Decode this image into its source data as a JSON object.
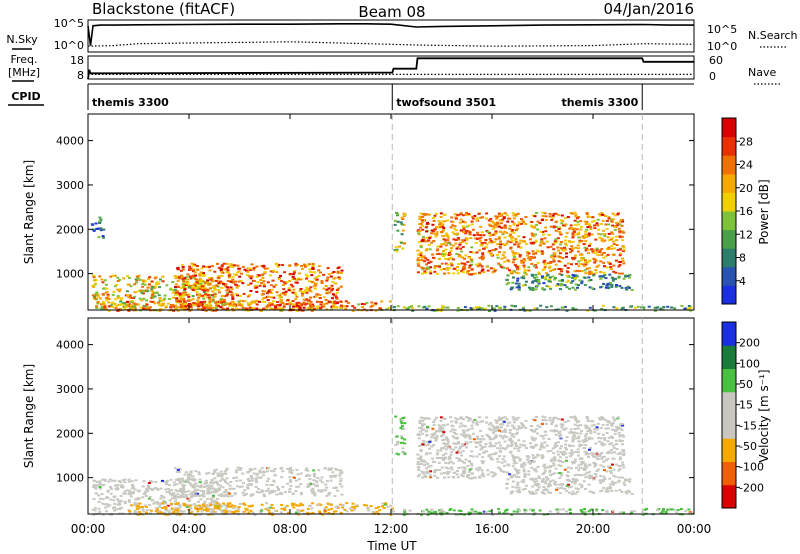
{
  "header": {
    "station": "Blackstone (fitACF)",
    "beam": "Beam 08",
    "date": "04/Jan/2016"
  },
  "chart_data": [
    {
      "type": "line",
      "panel": "noise",
      "left_label": "N.Sky",
      "right_label": "N.Search",
      "left_ticks": [
        "10^5",
        "10^0"
      ],
      "right_ticks": [
        "10^5",
        "10^0"
      ],
      "series": [
        {
          "name": "N.Sky",
          "style": "solid",
          "x": [
            0,
            0.1,
            0.2,
            0.5,
            1,
            2,
            4,
            6,
            8,
            10,
            11,
            12,
            13,
            14,
            16,
            18,
            20,
            22,
            23,
            24
          ],
          "y": [
            4.1,
            1.0,
            4.1,
            4.2,
            4.2,
            4.25,
            4.3,
            4.35,
            4.35,
            4.4,
            4.4,
            4.35,
            3.9,
            4.0,
            4.1,
            4.2,
            4.25,
            4.3,
            4.2,
            4.2
          ]
        },
        {
          "name": "N.Search",
          "style": "dotted",
          "x": [
            0,
            1,
            2,
            4,
            6,
            8,
            10,
            12,
            13,
            16,
            20,
            22,
            24
          ],
          "y": [
            0.9,
            1.0,
            1.3,
            1.4,
            1.5,
            1.6,
            1.4,
            1.2,
            1.1,
            0.9,
            1.0,
            1.3,
            1.2
          ]
        }
      ]
    },
    {
      "type": "line",
      "panel": "freq",
      "left_label_1": "Freq.",
      "left_label_2": "[MHz]",
      "right_label": "Nave",
      "left_ticks": [
        "18",
        "8"
      ],
      "right_ticks": [
        "60",
        "0"
      ],
      "series": [
        {
          "name": "Freq.",
          "style": "solid",
          "x": [
            0,
            0.05,
            0.1,
            12.05,
            12.1,
            13,
            13.05,
            21.95,
            22,
            24
          ],
          "y": [
            8,
            12,
            10.5,
            10.8,
            12.5,
            12.5,
            17,
            17,
            15.5,
            15.5
          ]
        },
        {
          "name": "Nave",
          "style": "dotted",
          "x": [
            0,
            24
          ],
          "y": [
            10,
            10
          ]
        }
      ]
    },
    {
      "type": "table",
      "panel": "cpid",
      "label": "CPID",
      "segments": [
        {
          "start": 0,
          "name": "themis 3300",
          "label_pos": "left"
        },
        {
          "start": 12.05,
          "name": "twofsound 3501",
          "label_pos": "left"
        },
        {
          "start": 21.95,
          "name": "themis 3300",
          "label_pos": "right"
        }
      ]
    },
    {
      "type": "heatmap",
      "panel": "power",
      "ylabel": "Slant Range [km]",
      "yticks": [
        "1000",
        "2000",
        "3000",
        "4000"
      ],
      "ylim": [
        180,
        4600
      ],
      "colorbar": {
        "label": "Power [dB]",
        "ticks": [
          "4",
          "8",
          "12",
          "16",
          "20",
          "24",
          "28"
        ],
        "colors": [
          "#1a2fe0",
          "#2a52b0",
          "#2e7d6a",
          "#4aa04a",
          "#7cc23a",
          "#f0d000",
          "#f5a800",
          "#f07000",
          "#e83000",
          "#d80000"
        ]
      },
      "regions": [
        {
          "x0": 0.1,
          "x1": 5.5,
          "r0": 180,
          "r1": 980,
          "level": 0.6
        },
        {
          "x0": 3.4,
          "x1": 10.0,
          "r0": 180,
          "r1": 1250,
          "level": 0.75
        },
        {
          "x0": 0.5,
          "x1": 12.0,
          "r0": 180,
          "r1": 400,
          "level": 0.7
        },
        {
          "x0": 12.0,
          "x1": 24.0,
          "r0": 180,
          "r1": 300,
          "level": 0.35
        },
        {
          "x0": 12.1,
          "x1": 12.5,
          "r0": 1500,
          "r1": 2400,
          "level": 0.5
        },
        {
          "x0": 13.0,
          "x1": 21.2,
          "r0": 1000,
          "r1": 2400,
          "level": 0.7
        },
        {
          "x0": 16.5,
          "x1": 21.5,
          "r0": 650,
          "r1": 1000,
          "level": 0.3
        },
        {
          "x0": 0.1,
          "x1": 0.6,
          "r0": 1800,
          "r1": 2300,
          "level": 0.2
        }
      ]
    },
    {
      "type": "heatmap",
      "panel": "velocity",
      "ylabel": "Slant Range [km]",
      "yticks": [
        "1000",
        "2000",
        "3000",
        "4000"
      ],
      "ylim": [
        180,
        4600
      ],
      "colorbar": {
        "label": "Velocity [m s⁻¹]",
        "ticks": [
          "-200",
          "-100",
          "-50",
          "-15",
          "15",
          "50",
          "100",
          "200"
        ],
        "colors": [
          "#d80000",
          "#f06000",
          "#f5a800",
          "#c8c8c0",
          "#c8c8c0",
          "#4ac040",
          "#1a7a3a",
          "#1a2fe0"
        ]
      },
      "regions": [
        {
          "x0": 0.1,
          "x1": 5.5,
          "r0": 180,
          "r1": 980,
          "level": 0
        },
        {
          "x0": 3.4,
          "x1": 10.0,
          "r0": 600,
          "r1": 1250,
          "level": 0
        },
        {
          "x0": 1.5,
          "x1": 12.0,
          "r0": 180,
          "r1": 450,
          "level": -60
        },
        {
          "x0": 12.0,
          "x1": 24.0,
          "r0": 180,
          "r1": 320,
          "level": 40
        },
        {
          "x0": 12.1,
          "x1": 12.5,
          "r0": 1500,
          "r1": 2400,
          "level": 30
        },
        {
          "x0": 13.0,
          "x1": 21.2,
          "r0": 1000,
          "r1": 2400,
          "level": 0
        },
        {
          "x0": 16.5,
          "x1": 21.5,
          "r0": 650,
          "r1": 1000,
          "level": 0
        }
      ]
    }
  ],
  "x_axis": {
    "label": "Time UT",
    "ticks": [
      "00:00",
      "04:00",
      "08:00",
      "12:00",
      "16:00",
      "20:00",
      "00:00"
    ],
    "tick_hours": [
      0,
      4,
      8,
      12,
      16,
      20,
      24
    ],
    "mode_changes": [
      12.05,
      21.95
    ]
  }
}
